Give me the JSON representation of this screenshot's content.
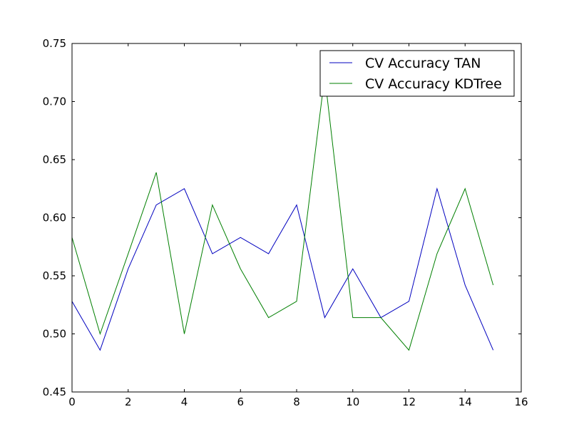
{
  "chart_data": {
    "type": "line",
    "title": "",
    "xlabel": "",
    "ylabel": "",
    "xlim": [
      0,
      16
    ],
    "ylim": [
      0.45,
      0.75
    ],
    "xticks": [
      0,
      2,
      4,
      6,
      8,
      10,
      12,
      14,
      16
    ],
    "xtick_labels": [
      "0",
      "2",
      "4",
      "6",
      "8",
      "10",
      "12",
      "14",
      "16"
    ],
    "yticks": [
      0.45,
      0.5,
      0.55,
      0.6,
      0.65,
      0.7,
      0.75
    ],
    "ytick_labels": [
      "0.45",
      "0.50",
      "0.55",
      "0.60",
      "0.65",
      "0.70",
      "0.75"
    ],
    "grid": false,
    "legend_position": "top-right",
    "x": [
      0,
      1,
      2,
      3,
      4,
      5,
      6,
      7,
      8,
      9,
      10,
      11,
      12,
      13,
      14,
      15
    ],
    "series": [
      {
        "name": "CV Accuracy TAN",
        "color": "#0000bf",
        "values": [
          0.528,
          0.486,
          0.556,
          0.611,
          0.625,
          0.569,
          0.583,
          0.569,
          0.611,
          0.514,
          0.556,
          0.514,
          0.528,
          0.625,
          0.542,
          0.486
        ]
      },
      {
        "name": "CV Accuracy KDTree",
        "color": "#007f00",
        "values": [
          0.583,
          0.5,
          0.569,
          0.639,
          0.5,
          0.611,
          0.556,
          0.514,
          0.528,
          0.722,
          0.514,
          0.514,
          0.486,
          0.569,
          0.625,
          0.542
        ]
      }
    ]
  }
}
